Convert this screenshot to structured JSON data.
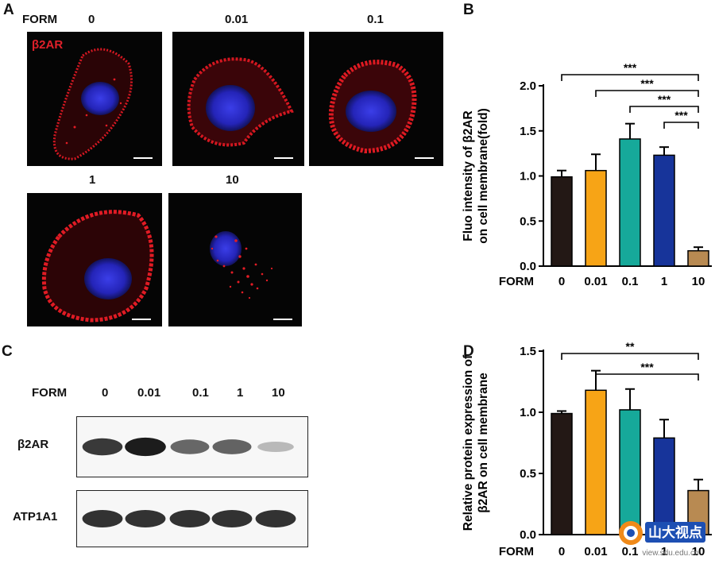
{
  "panels": {
    "a": {
      "letter": "A",
      "form_label": "FORM",
      "marker": "β2AR",
      "doses": [
        "0",
        "0.01",
        "0.1",
        "1",
        "10"
      ]
    },
    "b": {
      "letter": "B"
    },
    "c": {
      "letter": "C",
      "form_label": "FORM",
      "doses": [
        "0",
        "0.01",
        "0.1",
        "1",
        "10"
      ],
      "rows": [
        "β2AR",
        "ATP1A1"
      ],
      "band_intensity": {
        "b2ar": [
          0.82,
          0.95,
          0.6,
          0.62,
          0.22
        ],
        "atp1a1": [
          0.85,
          0.85,
          0.85,
          0.85,
          0.85
        ]
      }
    },
    "d": {
      "letter": "D"
    }
  },
  "chart_data": [
    {
      "type": "bar",
      "panel": "B",
      "title": "",
      "xlabel": "FORM",
      "ylabel": "Fluo intensity of β2AR on cell membrane(fold)",
      "ylabel_lines": [
        "Fluo intensity of β2AR",
        "on cell membrane(fold)"
      ],
      "categories": [
        "0",
        "0.01",
        "0.1",
        "1",
        "10"
      ],
      "values": [
        0.99,
        1.06,
        1.41,
        1.23,
        0.17
      ],
      "errors": [
        0.07,
        0.18,
        0.17,
        0.09,
        0.04
      ],
      "colors": [
        "#231815",
        "#f7a416",
        "#16a99a",
        "#17349a",
        "#b88a52"
      ],
      "ylim": [
        0,
        2.0
      ],
      "yticks": [
        "0.0",
        "0.5",
        "1.0",
        "1.5",
        "2.0"
      ],
      "significance": [
        {
          "from": "0",
          "to": "10",
          "label": "***"
        },
        {
          "from": "0.01",
          "to": "10",
          "label": "***"
        },
        {
          "from": "0.1",
          "to": "10",
          "label": "***"
        },
        {
          "from": "1",
          "to": "10",
          "label": "***"
        }
      ]
    },
    {
      "type": "bar",
      "panel": "D",
      "title": "",
      "xlabel": "FORM",
      "ylabel": "Relative protein expression of β2AR on cell membrane",
      "ylabel_lines": [
        "Relative protein expression of",
        "β2AR on cell membrane"
      ],
      "categories": [
        "0",
        "0.01",
        "0.1",
        "1",
        "10"
      ],
      "values": [
        0.99,
        1.18,
        1.02,
        0.79,
        0.36
      ],
      "errors": [
        0.02,
        0.16,
        0.17,
        0.15,
        0.09
      ],
      "colors": [
        "#231815",
        "#f7a416",
        "#16a99a",
        "#17349a",
        "#b88a52"
      ],
      "ylim": [
        0,
        1.5
      ],
      "yticks": [
        "0.0",
        "0.5",
        "1.0",
        "1.5"
      ],
      "significance": [
        {
          "from": "0",
          "to": "10",
          "label": "**"
        },
        {
          "from": "0.01",
          "to": "10",
          "label": "***"
        }
      ]
    }
  ],
  "watermark": {
    "text": "山大视点",
    "url": "view.sdu.edu.cn"
  }
}
